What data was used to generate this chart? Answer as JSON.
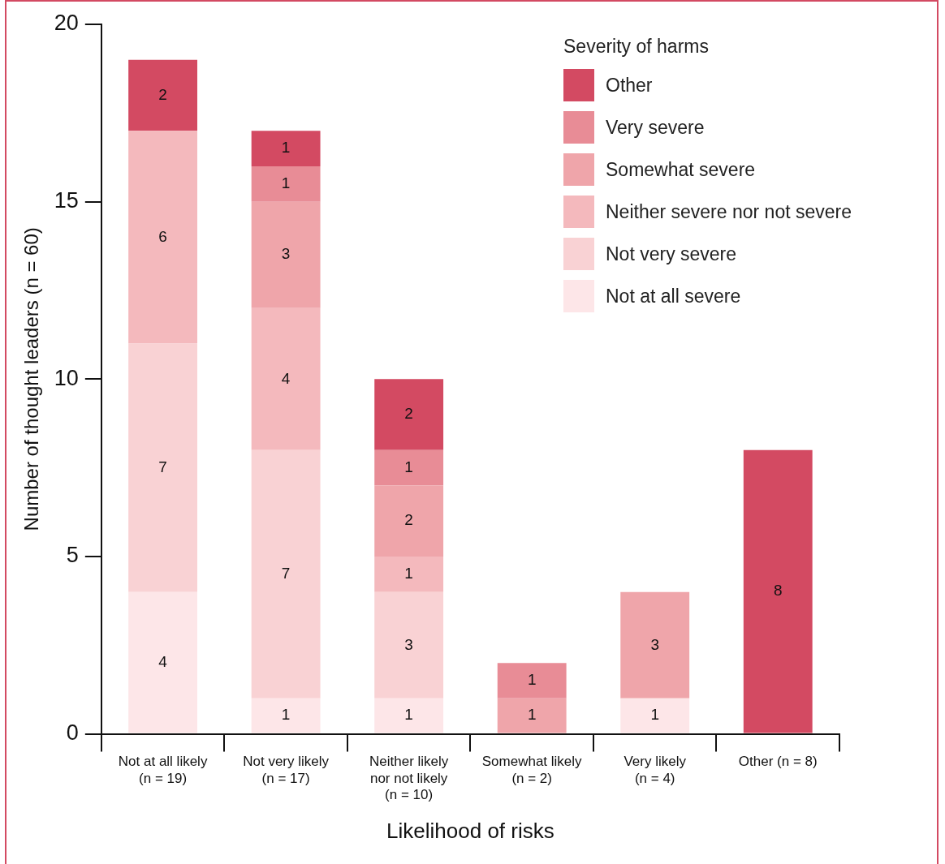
{
  "chart_data": {
    "type": "bar",
    "stacked": true,
    "xlabel": "Likelihood of risks",
    "ylabel": "Number of thought leaders (n = 60)",
    "legend_title": "Severity of harms",
    "categories": [
      "Not at all likely\n(n = 19)",
      "Not very likely\n(n = 17)",
      "Neither likely\nnor not likely\n(n = 10)",
      "Somewhat likely\n(n = 2)",
      "Very likely\n(n = 4)",
      "Other (n = 8)"
    ],
    "series": [
      {
        "name": "Not at all severe",
        "color": "#fde6e8",
        "values": [
          4,
          1,
          1,
          null,
          1,
          null
        ]
      },
      {
        "name": "Not very severe",
        "color": "#f9d2d4",
        "values": [
          7,
          7,
          3,
          null,
          null,
          null
        ]
      },
      {
        "name": "Neither severe nor not severe",
        "color": "#f4b9bd",
        "values": [
          6,
          4,
          1,
          null,
          null,
          null
        ]
      },
      {
        "name": "Somewhat severe",
        "color": "#efa5aa",
        "values": [
          null,
          3,
          2,
          1,
          3,
          null
        ]
      },
      {
        "name": "Very severe",
        "color": "#e88c96",
        "values": [
          null,
          1,
          1,
          1,
          null,
          null
        ]
      },
      {
        "name": "Other",
        "color": "#d34a62",
        "values": [
          2,
          1,
          2,
          null,
          null,
          8
        ]
      }
    ],
    "ylim": [
      0,
      20
    ],
    "yticks": [
      0,
      5,
      10,
      15,
      20
    ],
    "grid": false,
    "legend": "top right",
    "data_labels": true
  }
}
